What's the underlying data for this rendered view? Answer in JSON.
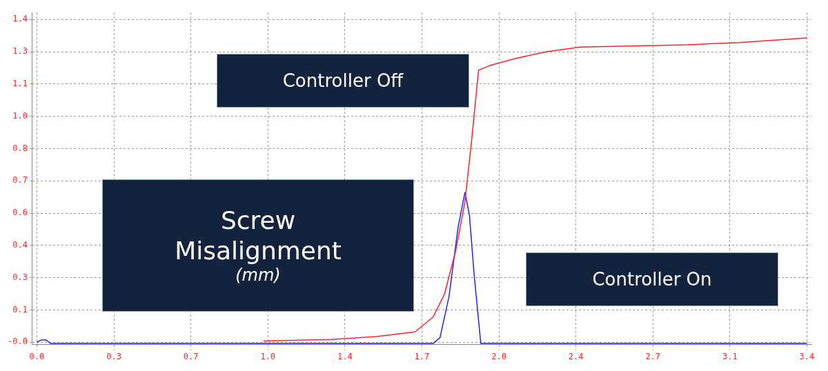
{
  "chart_data": {
    "type": "line",
    "ylabel": "Screw Misalignment (mm)",
    "annotations": [
      "Controller Off",
      "Controller On"
    ],
    "xlim": [
      -0.02,
      3.42
    ],
    "ylim": [
      -0.01,
      1.43
    ],
    "xticks": [
      {
        "value": 0,
        "label": "0.0"
      },
      {
        "value": 0.34,
        "label": "0.3"
      },
      {
        "value": 0.68,
        "label": "0.7"
      },
      {
        "value": 1.02,
        "label": "1.0"
      },
      {
        "value": 1.36,
        "label": "1.4"
      },
      {
        "value": 1.7,
        "label": "1.7"
      },
      {
        "value": 2.04,
        "label": "2.0"
      },
      {
        "value": 2.38,
        "label": "2.4"
      },
      {
        "value": 2.72,
        "label": "2.7"
      },
      {
        "value": 3.06,
        "label": "3.1"
      },
      {
        "value": 3.4,
        "label": "3.4"
      }
    ],
    "yticks": [
      {
        "value": 0,
        "label": "-0.0"
      },
      {
        "value": 0.14,
        "label": "0.1"
      },
      {
        "value": 0.28,
        "label": "0.3"
      },
      {
        "value": 0.42,
        "label": "0.4"
      },
      {
        "value": 0.56,
        "label": "0.6"
      },
      {
        "value": 0.7,
        "label": "0.7"
      },
      {
        "value": 0.84,
        "label": "0.8"
      },
      {
        "value": 0.98,
        "label": "1.0"
      },
      {
        "value": 1.12,
        "label": "1.1"
      },
      {
        "value": 1.26,
        "label": "1.3"
      },
      {
        "value": 1.4,
        "label": "1.4"
      }
    ],
    "grid": true,
    "line_style": "solid",
    "marker": "none",
    "series": [
      {
        "color": "#ff2020",
        "x": [
          1.0,
          1.3,
          1.5,
          1.67,
          1.75,
          1.8,
          1.85,
          1.89,
          1.92,
          1.95,
          2.0,
          2.11,
          2.25,
          2.4,
          2.87,
          3.1,
          3.4
        ],
        "values": [
          0.005,
          0.012,
          0.025,
          0.045,
          0.11,
          0.21,
          0.4,
          0.61,
          0.88,
          1.18,
          1.2,
          1.23,
          1.26,
          1.28,
          1.29,
          1.3,
          1.32
        ]
      },
      {
        "color": "#2020ff",
        "x": [
          0,
          0.02,
          0.04,
          0.06,
          1.0,
          1.75,
          1.78,
          1.82,
          1.86,
          1.89,
          1.91,
          1.93,
          1.96,
          2.0,
          3.4
        ],
        "values": [
          0,
          0.01,
          0.01,
          -0.005,
          -0.005,
          -0.005,
          0.02,
          0.2,
          0.5,
          0.65,
          0.55,
          0.3,
          -0.005,
          -0.005,
          -0.005
        ]
      }
    ]
  }
}
